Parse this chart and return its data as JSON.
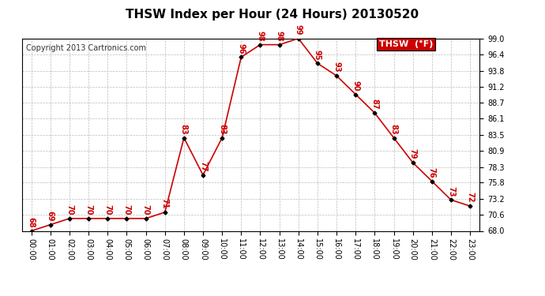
{
  "title": "THSW Index per Hour (24 Hours) 20130520",
  "copyright": "Copyright 2013 Cartronics.com",
  "legend_label": "THSW  (°F)",
  "hours": [
    "00:00",
    "01:00",
    "02:00",
    "03:00",
    "04:00",
    "05:00",
    "06:00",
    "07:00",
    "08:00",
    "09:00",
    "10:00",
    "11:00",
    "12:00",
    "13:00",
    "14:00",
    "15:00",
    "16:00",
    "17:00",
    "18:00",
    "19:00",
    "20:00",
    "21:00",
    "22:00",
    "23:00"
  ],
  "values": [
    68,
    69,
    70,
    70,
    70,
    70,
    70,
    71,
    83,
    77,
    83,
    96,
    98,
    98,
    99,
    95,
    93,
    90,
    87,
    83,
    79,
    76,
    73,
    72
  ],
  "ylim_min": 68.0,
  "ylim_max": 99.0,
  "yticks": [
    68.0,
    70.6,
    73.2,
    75.8,
    78.3,
    80.9,
    83.5,
    86.1,
    88.7,
    91.2,
    93.8,
    96.4,
    99.0
  ],
  "line_color": "#cc0000",
  "marker_color": "#000000",
  "background_color": "#ffffff",
  "grid_color": "#bbbbbb",
  "title_fontsize": 11,
  "copyright_fontsize": 7,
  "label_fontsize": 7,
  "data_label_fontsize": 7,
  "legend_bg": "#cc0000",
  "legend_text_color": "#ffffff",
  "legend_fontsize": 8
}
